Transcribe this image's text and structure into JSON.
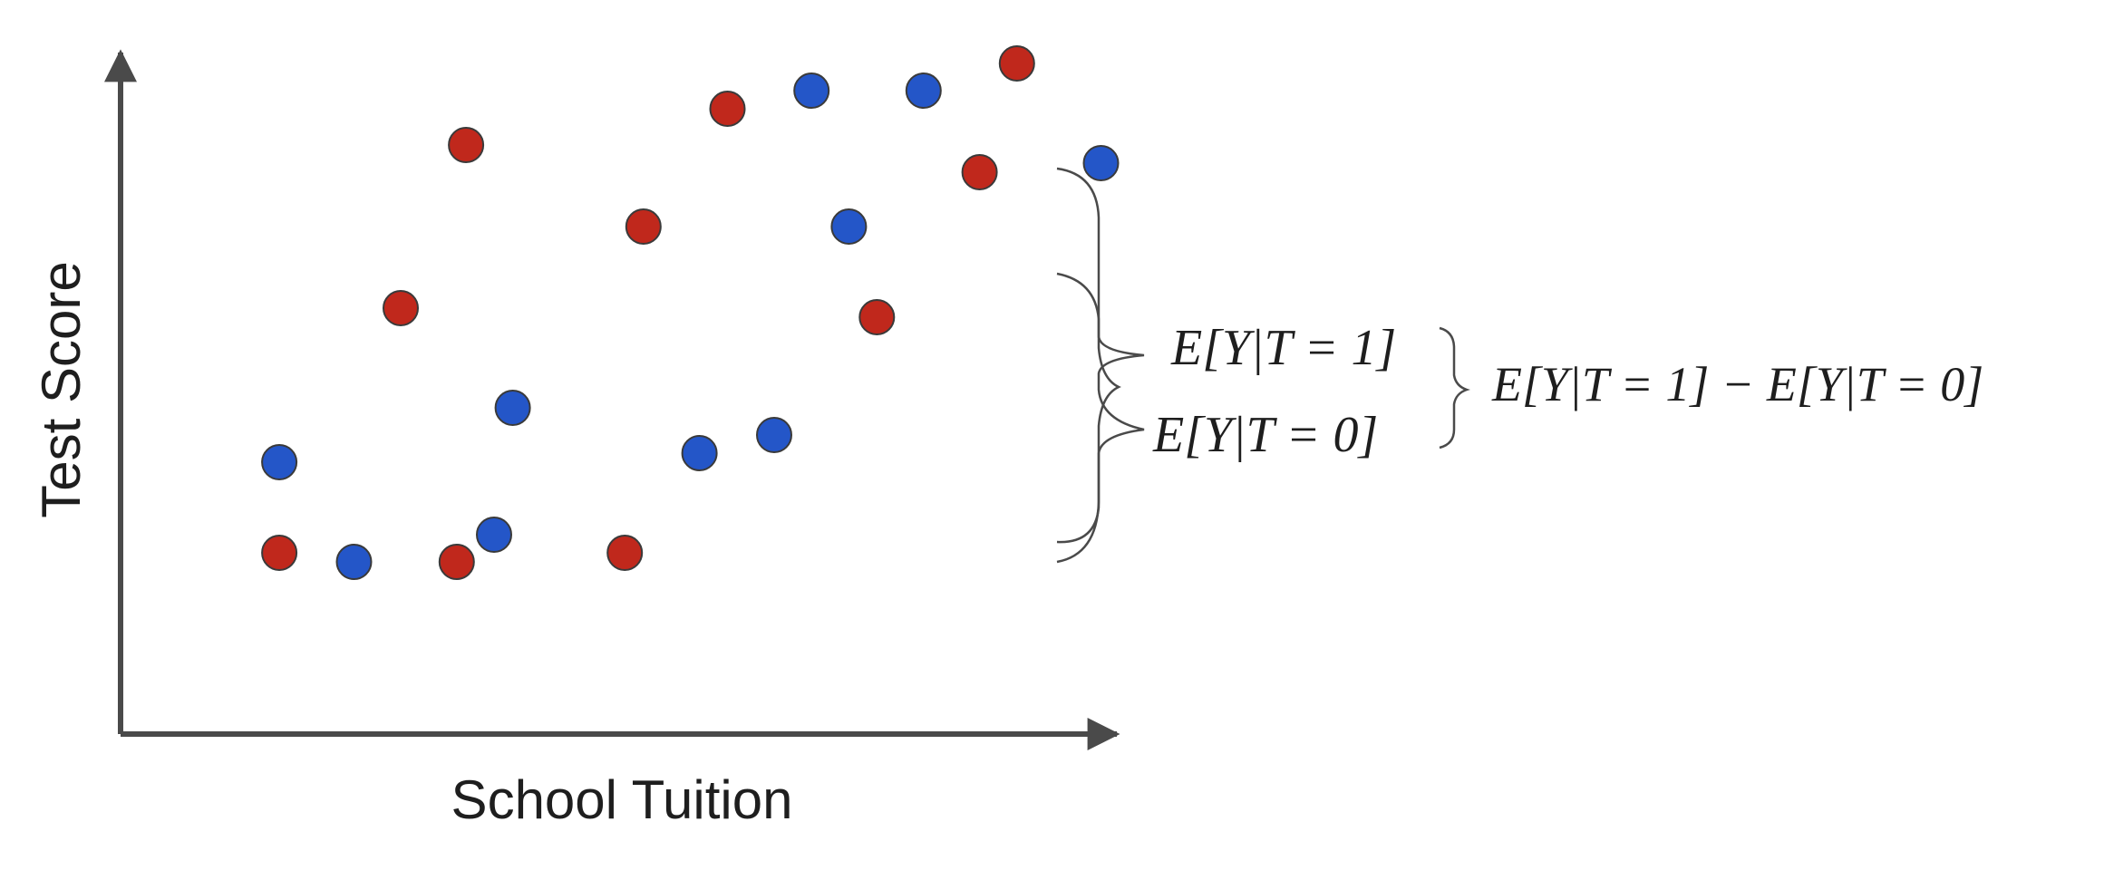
{
  "chart_data": {
    "type": "scatter",
    "xlabel": "School Tuition",
    "ylabel": "Test Score",
    "colors": {
      "red_points": "#c0281c",
      "blue_points": "#2456c8",
      "axis": "#4a4a4a"
    },
    "series": [
      {
        "color": "#c0281c",
        "points": [
          [
            1.7,
            2.0
          ],
          [
            3.0,
            4.7
          ],
          [
            3.7,
            6.5
          ],
          [
            3.6,
            1.9
          ],
          [
            5.4,
            2.0
          ],
          [
            5.6,
            5.6
          ],
          [
            6.5,
            6.9
          ],
          [
            8.1,
            4.6
          ],
          [
            9.2,
            6.2
          ],
          [
            9.6,
            7.4
          ]
        ]
      },
      {
        "color": "#2456c8",
        "points": [
          [
            1.7,
            3.0
          ],
          [
            2.5,
            1.9
          ],
          [
            4.0,
            2.2
          ],
          [
            4.2,
            3.6
          ],
          [
            6.2,
            3.1
          ],
          [
            7.0,
            3.3
          ],
          [
            7.4,
            7.1
          ],
          [
            7.8,
            5.6
          ],
          [
            8.6,
            7.1
          ],
          [
            10.5,
            6.3
          ]
        ]
      }
    ]
  },
  "annotations": {
    "treated_label": "E[Y|T = 1]",
    "control_label": "E[Y|T = 0]",
    "difference_label": "E[Y|T = 1] − E[Y|T = 0]"
  }
}
